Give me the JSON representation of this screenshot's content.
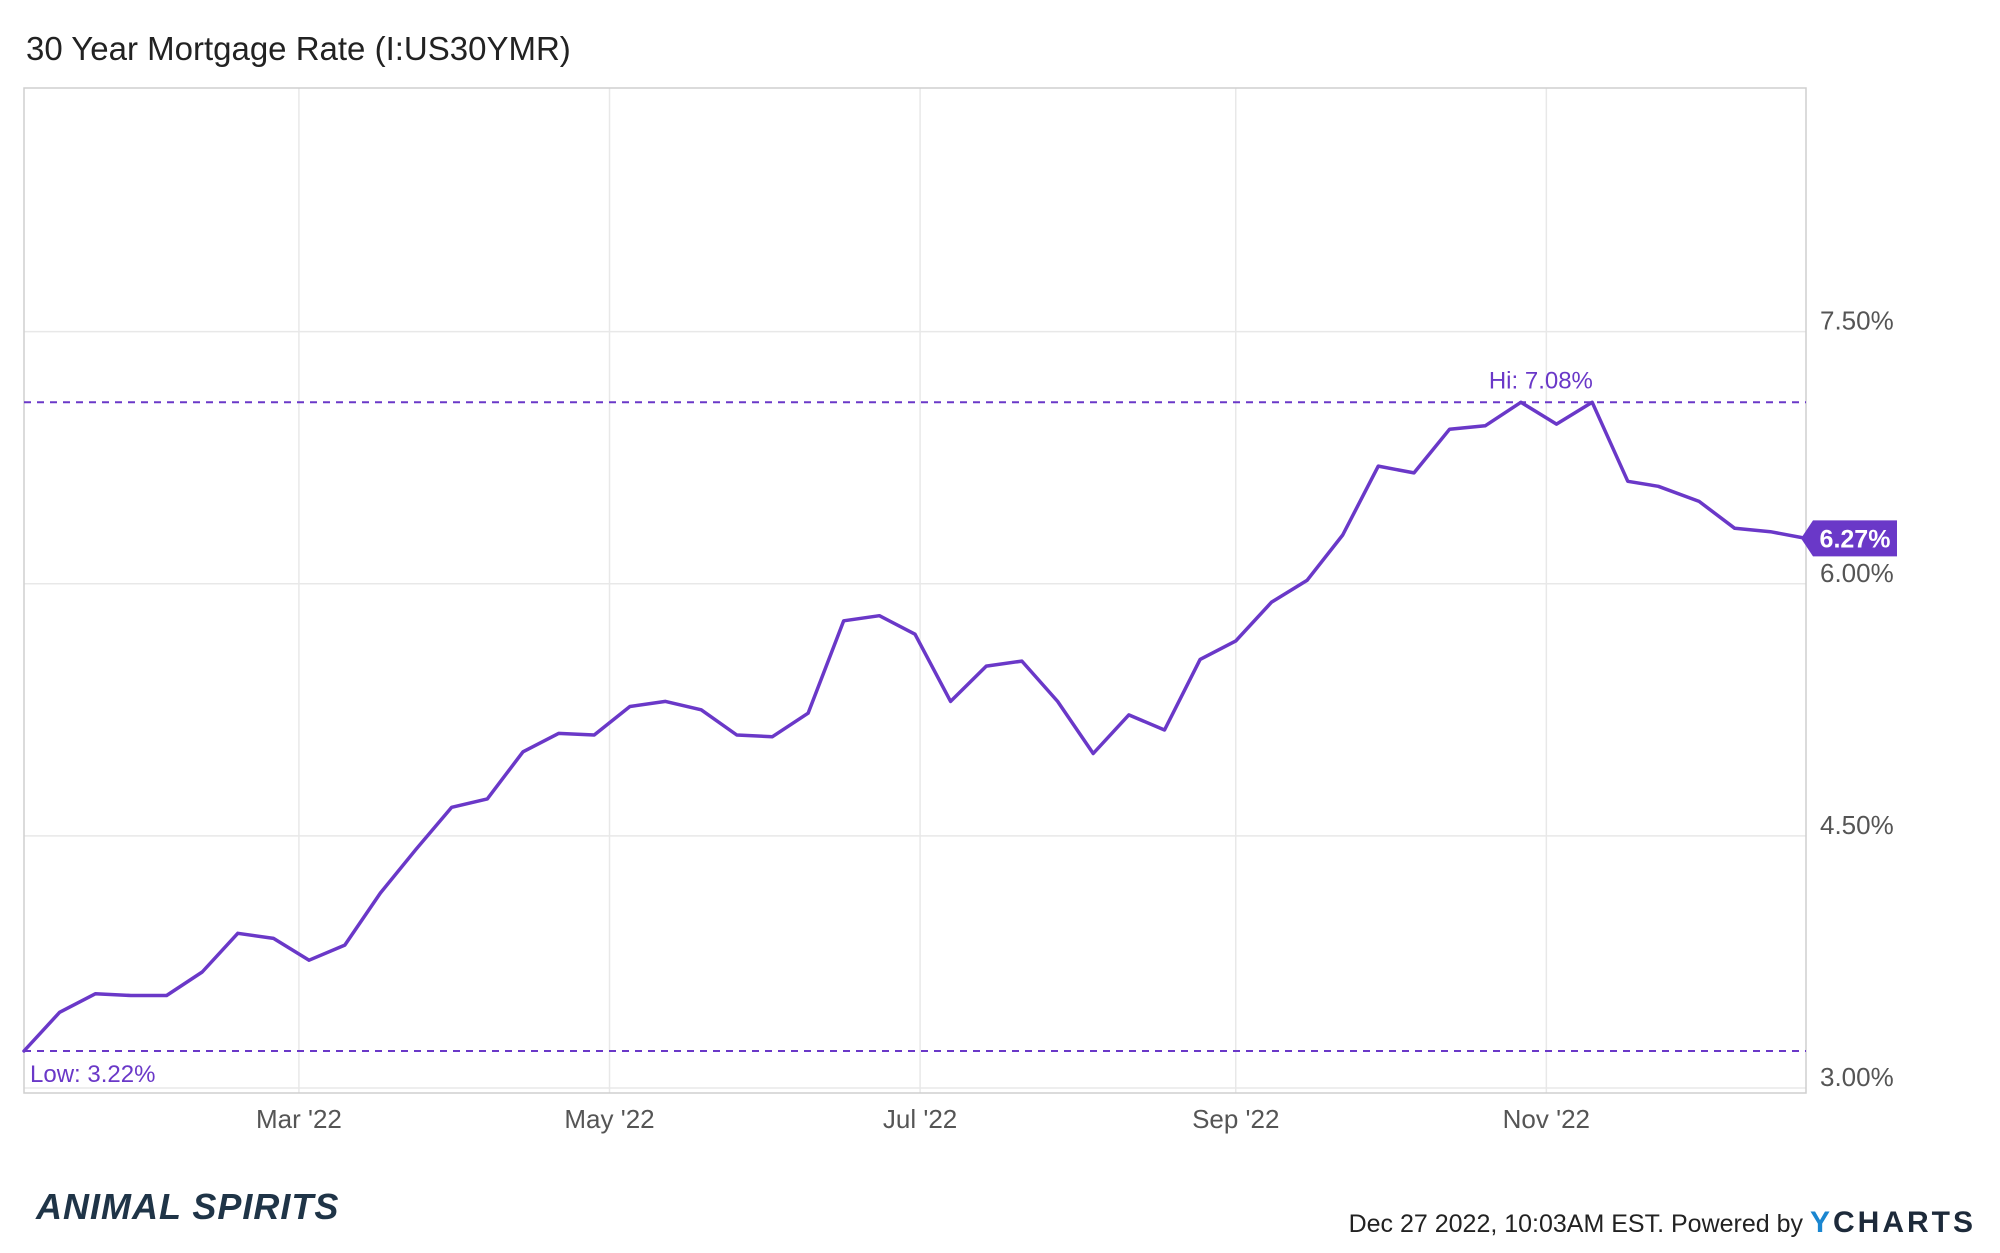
{
  "title": "30 Year Mortgage Rate (I:US30YMR)",
  "chart_data": {
    "type": "line",
    "title": "30 Year Mortgage Rate (I:US30YMR)",
    "xlabel": "",
    "ylabel": "",
    "x_ticks": [
      "Mar '22",
      "May '22",
      "Jul '22",
      "Sep '22",
      "Nov '22"
    ],
    "y_ticks": [
      "3.00%",
      "4.50%",
      "6.00%",
      "7.50%"
    ],
    "ylim": [
      2.97,
      8.95
    ],
    "grid": true,
    "series": [
      {
        "color": "#6a38c8",
        "x": [
          "2022-01-06",
          "2022-01-13",
          "2022-01-20",
          "2022-01-27",
          "2022-02-03",
          "2022-02-10",
          "2022-02-17",
          "2022-02-24",
          "2022-03-03",
          "2022-03-10",
          "2022-03-17",
          "2022-03-24",
          "2022-03-31",
          "2022-04-07",
          "2022-04-14",
          "2022-04-21",
          "2022-04-28",
          "2022-05-05",
          "2022-05-12",
          "2022-05-19",
          "2022-05-26",
          "2022-06-02",
          "2022-06-09",
          "2022-06-16",
          "2022-06-23",
          "2022-06-30",
          "2022-07-07",
          "2022-07-14",
          "2022-07-21",
          "2022-07-28",
          "2022-08-04",
          "2022-08-11",
          "2022-08-18",
          "2022-08-25",
          "2022-09-01",
          "2022-09-08",
          "2022-09-15",
          "2022-09-22",
          "2022-09-29",
          "2022-10-06",
          "2022-10-13",
          "2022-10-20",
          "2022-10-27",
          "2022-11-03",
          "2022-11-10",
          "2022-11-17",
          "2022-11-23",
          "2022-12-01",
          "2022-12-08",
          "2022-12-15",
          "2022-12-22"
        ],
        "values": [
          3.22,
          3.45,
          3.56,
          3.55,
          3.55,
          3.69,
          3.92,
          3.89,
          3.76,
          3.85,
          4.16,
          4.42,
          4.67,
          4.72,
          5.0,
          5.11,
          5.1,
          5.27,
          5.3,
          5.25,
          5.1,
          5.09,
          5.23,
          5.78,
          5.81,
          5.7,
          5.3,
          5.51,
          5.54,
          5.3,
          4.99,
          5.22,
          5.13,
          5.55,
          5.66,
          5.89,
          6.02,
          6.29,
          6.7,
          6.66,
          6.92,
          6.94,
          7.08,
          6.95,
          7.08,
          6.61,
          6.58,
          6.49,
          6.33,
          6.31,
          6.27
        ]
      }
    ],
    "annotations": {
      "low_label": "Low: 3.22%",
      "low_value": 3.22,
      "high_label": "Hi: 7.08%",
      "high_value": 7.08,
      "last_label": "6.27%",
      "last_value": 6.27
    }
  },
  "footer": {
    "brand": "ANIMAL SPIRITS",
    "timestamp": "Dec 27 2022, 10:03AM EST.",
    "powered_by": "Powered by",
    "logo_y": "Y",
    "logo_rest": "CHARTS"
  }
}
